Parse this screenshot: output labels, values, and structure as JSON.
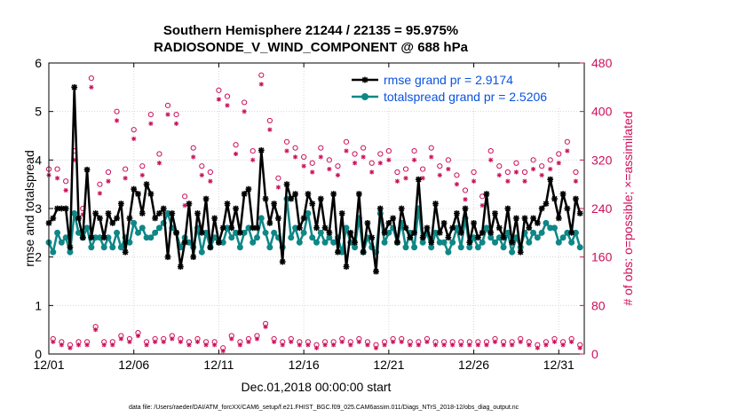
{
  "chart_data": {
    "type": "line",
    "title": [
      "Southern Hemisphere 21244 / 22135 = 95.975%",
      "RADIOSONDE_V_WIND_COMPONENT @ 688 hPa"
    ],
    "xlabel": "Dec.01,2018 00:00:00 start",
    "ylabel": "rmse and totalspread",
    "ylabel_right": "# of obs: o=possible; ×=assimilated",
    "xlim": [
      0,
      31.5
    ],
    "ylim": [
      0,
      6
    ],
    "ylim_right": [
      0,
      480
    ],
    "x_ticks": [
      0,
      5,
      10,
      15,
      20,
      25,
      30
    ],
    "x_tick_labels": [
      "12/01",
      "12/06",
      "12/11",
      "12/16",
      "12/21",
      "12/26",
      "12/31"
    ],
    "y_ticks": [
      0,
      1,
      2,
      3,
      4,
      5,
      6
    ],
    "y_tick_labels": [
      "0",
      "1",
      "2",
      "3",
      "4",
      "5",
      "6"
    ],
    "y_ticks_right": [
      0,
      80,
      160,
      240,
      320,
      400,
      480
    ],
    "y_tick_labels_right": [
      "0",
      "80",
      "160",
      "240",
      "320",
      "400",
      "480"
    ],
    "legend_position": "top-right",
    "x": [
      0.0,
      0.25,
      0.5,
      0.75,
      1.0,
      1.25,
      1.5,
      1.75,
      2.0,
      2.25,
      2.5,
      2.75,
      3.0,
      3.25,
      3.5,
      3.75,
      4.0,
      4.25,
      4.5,
      4.75,
      5.0,
      5.25,
      5.5,
      5.75,
      6.0,
      6.25,
      6.5,
      6.75,
      7.0,
      7.25,
      7.5,
      7.75,
      8.0,
      8.25,
      8.5,
      8.75,
      9.0,
      9.25,
      9.5,
      9.75,
      10.0,
      10.25,
      10.5,
      10.75,
      11.0,
      11.25,
      11.5,
      11.75,
      12.0,
      12.25,
      12.5,
      12.75,
      13.0,
      13.25,
      13.5,
      13.75,
      14.0,
      14.25,
      14.5,
      14.75,
      15.0,
      15.25,
      15.5,
      15.75,
      16.0,
      16.25,
      16.5,
      16.75,
      17.0,
      17.25,
      17.5,
      17.75,
      18.0,
      18.25,
      18.5,
      18.75,
      19.0,
      19.25,
      19.5,
      19.75,
      20.0,
      20.25,
      20.5,
      20.75,
      21.0,
      21.25,
      21.5,
      21.75,
      22.0,
      22.25,
      22.5,
      22.75,
      23.0,
      23.25,
      23.5,
      23.75,
      24.0,
      24.25,
      24.5,
      24.75,
      25.0,
      25.25,
      25.5,
      25.75,
      26.0,
      26.25,
      26.5,
      26.75,
      27.0,
      27.25,
      27.5,
      27.75,
      28.0,
      28.25,
      28.5,
      28.75,
      29.0,
      29.25,
      29.5,
      29.75,
      30.0,
      30.25,
      30.5,
      30.75,
      31.0,
      31.25
    ],
    "series": [
      {
        "name": "rmse",
        "legend": "rmse grand pr = 2.9174",
        "color": "#000000",
        "marker": "asterisk",
        "axis": "left",
        "values": [
          2.7,
          2.8,
          3.0,
          3.0,
          3.0,
          2.2,
          5.5,
          2.8,
          2.4,
          3.8,
          2.4,
          2.9,
          2.8,
          2.4,
          2.9,
          2.7,
          2.8,
          3.1,
          2.1,
          2.8,
          3.4,
          3.3,
          2.9,
          3.5,
          3.3,
          2.8,
          2.9,
          3.0,
          2.0,
          2.9,
          2.5,
          1.8,
          2.3,
          3.1,
          2.0,
          2.9,
          2.5,
          3.2,
          2.2,
          2.8,
          2.3,
          2.6,
          3.1,
          2.6,
          3.0,
          2.5,
          3.3,
          3.4,
          2.6,
          2.6,
          4.2,
          3.2,
          2.7,
          3.1,
          2.8,
          1.9,
          3.5,
          3.2,
          3.3,
          2.6,
          2.8,
          3.3,
          3.1,
          2.6,
          3.2,
          2.6,
          2.5,
          3.3,
          2.1,
          2.9,
          1.8,
          2.5,
          2.3,
          3.3,
          2.1,
          2.7,
          2.4,
          1.7,
          3.0,
          2.5,
          2.7,
          2.8,
          2.3,
          3.0,
          2.6,
          2.4,
          2.5,
          3.6,
          2.4,
          2.6,
          2.3,
          3.1,
          2.5,
          2.7,
          2.4,
          2.6,
          2.9,
          2.5,
          3.0,
          2.3,
          2.7,
          2.4,
          2.5,
          3.3,
          2.5,
          2.9,
          2.6,
          2.4,
          3.0,
          2.3,
          2.8,
          2.1,
          2.8,
          2.6,
          2.8,
          2.7,
          3.0,
          3.1,
          3.6,
          3.2,
          2.8,
          3.3,
          3.0,
          2.5,
          3.2,
          2.9
        ]
      },
      {
        "name": "totalspread",
        "legend": "totalspread grand pr = 2.5206",
        "color": "#0f8787",
        "marker": "dot",
        "axis": "left",
        "values": [
          2.3,
          2.1,
          2.5,
          2.3,
          2.4,
          2.1,
          2.9,
          2.5,
          2.4,
          2.6,
          2.2,
          2.4,
          2.4,
          2.2,
          2.4,
          2.2,
          2.5,
          2.2,
          2.4,
          2.3,
          2.7,
          2.5,
          2.6,
          2.4,
          2.4,
          2.5,
          2.6,
          2.7,
          2.9,
          2.6,
          2.5,
          2.2,
          2.4,
          2.3,
          2.2,
          2.6,
          2.1,
          2.5,
          2.2,
          2.4,
          2.3,
          2.3,
          2.6,
          2.4,
          2.5,
          2.2,
          2.5,
          2.6,
          2.3,
          2.4,
          2.8,
          2.5,
          2.2,
          2.5,
          2.4,
          2.2,
          3.2,
          2.4,
          2.6,
          2.3,
          2.5,
          2.9,
          2.4,
          2.3,
          2.5,
          2.3,
          2.4,
          2.3,
          2.4,
          2.1,
          2.6,
          2.3,
          2.2,
          2.8,
          2.1,
          2.4,
          2.2,
          2.1,
          2.9,
          2.3,
          2.5,
          2.6,
          2.3,
          2.7,
          2.2,
          2.5,
          2.2,
          3.0,
          2.3,
          2.5,
          2.2,
          2.5,
          2.3,
          2.3,
          2.1,
          2.3,
          2.6,
          2.2,
          2.8,
          2.2,
          2.4,
          2.2,
          2.3,
          2.6,
          2.4,
          2.3,
          2.4,
          2.2,
          2.5,
          2.1,
          2.4,
          2.2,
          2.5,
          2.3,
          2.5,
          2.4,
          2.5,
          2.7,
          2.6,
          2.6,
          2.3,
          2.4,
          2.5,
          2.3,
          2.5,
          2.2
        ]
      }
    ],
    "obs_x": [
      0,
      1,
      2,
      3,
      4,
      5,
      6,
      7,
      8,
      9,
      10,
      11,
      12,
      13,
      14,
      15,
      16,
      17,
      18,
      19,
      20,
      21,
      22,
      23,
      24,
      25,
      26,
      27,
      28,
      29,
      30,
      31,
      32,
      33,
      34,
      35,
      36,
      37,
      38,
      39,
      40,
      41,
      42,
      43,
      44,
      45,
      46,
      47,
      48,
      49,
      50,
      51,
      52,
      53,
      54,
      55,
      56,
      57,
      58,
      59,
      60,
      61,
      62,
      63,
      64,
      65,
      66,
      67,
      68,
      69,
      70,
      71,
      72,
      73,
      74,
      75,
      76,
      77,
      78,
      79,
      80,
      81,
      82,
      83,
      84,
      85,
      86,
      87,
      88,
      89,
      90,
      91,
      92,
      93,
      94,
      95,
      96,
      97,
      98,
      99,
      100,
      101,
      102,
      103,
      104,
      105,
      106,
      107,
      108,
      109,
      110,
      111,
      112,
      113,
      114,
      115,
      116,
      117,
      118,
      119,
      120,
      121,
      122,
      123,
      124,
      125
    ],
    "obs_x_scale": 0.25,
    "obs_possible": [
      305,
      25,
      305,
      20,
      285,
      15,
      335,
      20,
      240,
      20,
      455,
      45,
      280,
      20,
      300,
      20,
      400,
      30,
      305,
      25,
      370,
      35,
      310,
      20,
      395,
      25,
      330,
      25,
      410,
      30,
      395,
      25,
      260,
      20,
      340,
      25,
      310,
      20,
      300,
      20,
      435,
      10,
      425,
      30,
      345,
      20,
      415,
      25,
      335,
      30,
      460,
      50,
      385,
      25,
      290,
      20,
      350,
      25,
      340,
      20,
      325,
      20,
      315,
      15,
      340,
      20,
      320,
      20,
      310,
      25,
      350,
      20,
      330,
      25,
      340,
      20,
      315,
      15,
      330,
      20,
      335,
      25,
      300,
      25,
      305,
      20,
      335,
      20,
      305,
      25,
      340,
      20,
      310,
      20,
      320,
      20,
      295,
      20,
      270,
      20,
      300,
      20,
      260,
      20,
      335,
      25,
      310,
      20,
      300,
      20,
      315,
      25,
      300,
      20,
      320,
      15,
      310,
      20,
      320,
      25,
      330,
      20,
      350,
      25,
      300,
      15
    ],
    "obs_assimilated": [
      295,
      20,
      290,
      15,
      270,
      10,
      320,
      15,
      230,
      15,
      440,
      40,
      265,
      15,
      285,
      15,
      385,
      25,
      290,
      20,
      355,
      30,
      295,
      15,
      380,
      20,
      315,
      20,
      395,
      25,
      380,
      20,
      245,
      15,
      325,
      20,
      295,
      15,
      285,
      15,
      420,
      5,
      410,
      25,
      330,
      15,
      400,
      20,
      320,
      25,
      445,
      45,
      370,
      20,
      275,
      15,
      335,
      20,
      325,
      15,
      310,
      15,
      300,
      10,
      325,
      15,
      305,
      15,
      295,
      20,
      335,
      15,
      315,
      20,
      325,
      15,
      300,
      10,
      315,
      15,
      320,
      20,
      285,
      20,
      290,
      15,
      320,
      15,
      290,
      20,
      325,
      15,
      295,
      15,
      305,
      15,
      280,
      15,
      255,
      15,
      285,
      15,
      245,
      15,
      320,
      20,
      295,
      15,
      285,
      15,
      300,
      20,
      285,
      15,
      305,
      10,
      295,
      15,
      305,
      20,
      315,
      15,
      335,
      20,
      285,
      10
    ],
    "obs_color": "#cc0f5a",
    "footer": "data file: /Users/raeder/DAI/ATM_forcXX/CAM6_setup/f.e21.FHIST_BGC.f09_025.CAM6assim.011/Diags_NTrS_2018-12/obs_diag_output.nc"
  }
}
